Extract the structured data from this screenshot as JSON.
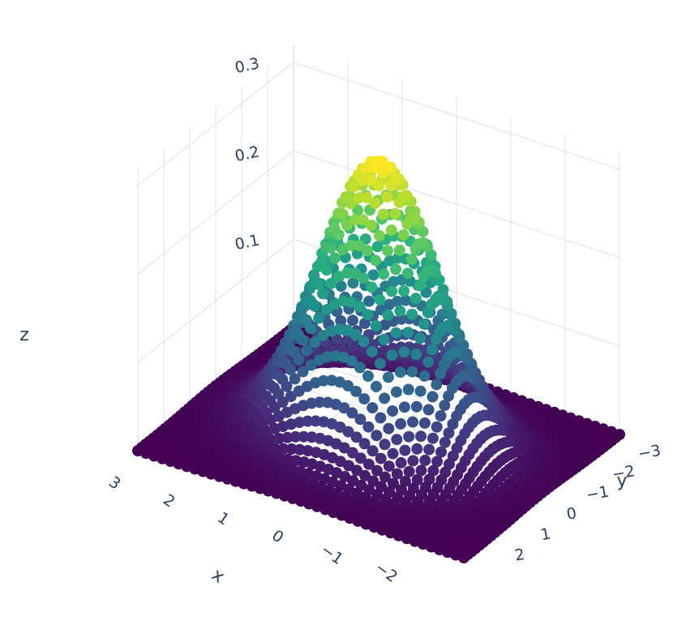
{
  "chart_data": {
    "type": "scatter3d",
    "surface_function": "z = exp(-(x^2 + y^2)/2) / (2*pi)",
    "x": {
      "title": "x",
      "range": [
        -3,
        3
      ],
      "ticks": [
        "3",
        "2",
        "1",
        "0",
        "−1",
        "−2"
      ]
    },
    "y": {
      "title": "y",
      "range": [
        -3,
        3
      ],
      "ticks": [
        "−3",
        "−2",
        "−1",
        "0",
        "1",
        "2"
      ]
    },
    "z": {
      "title": "z",
      "range": [
        0,
        0.32
      ],
      "ticks": [
        "0.1",
        "0.2",
        "0.3"
      ]
    },
    "z_max": 0.159,
    "colorscale": "viridis",
    "colors": {
      "low": "#440154",
      "high": "#fde725",
      "grid": "#dfe5ef",
      "text": "#2a3f5f"
    },
    "grid": true
  }
}
